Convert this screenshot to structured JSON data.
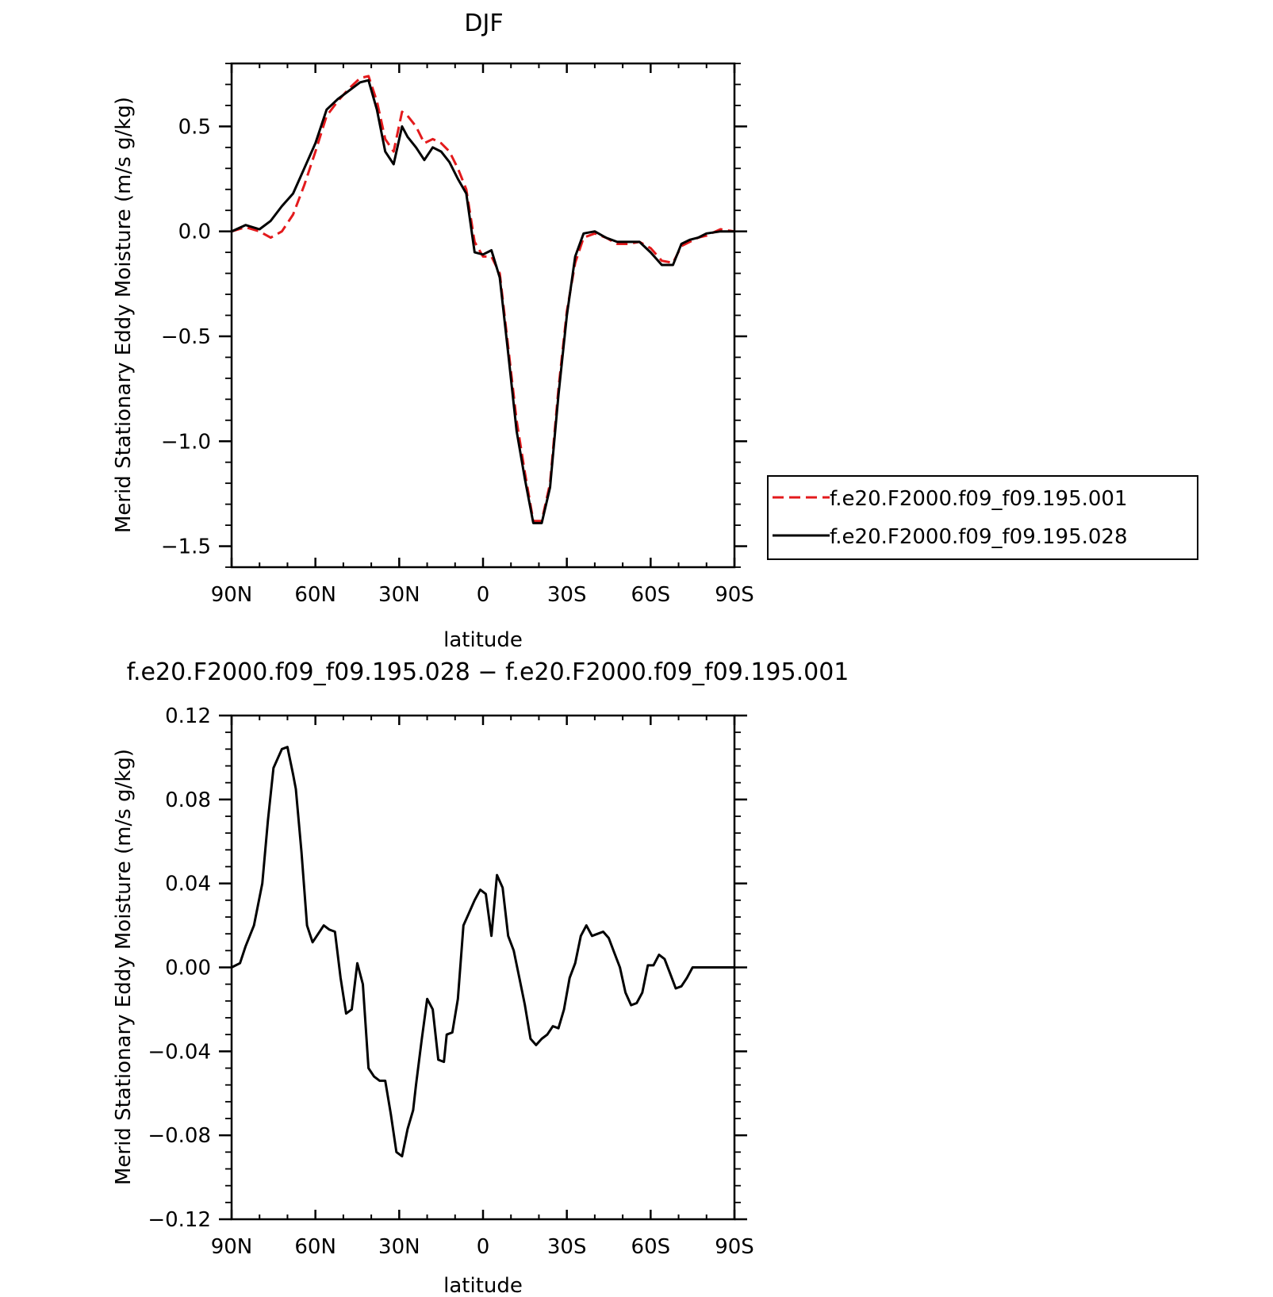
{
  "chart_data": [
    {
      "type": "line",
      "title": "DJF",
      "xlabel": "latitude",
      "ylabel": "Merid Stationary Eddy Moisture (m/s g/kg)",
      "xlim": [
        90,
        -90
      ],
      "ylim": [
        -1.6,
        0.8
      ],
      "xticks": [
        90,
        60,
        30,
        0,
        -30,
        -60,
        -90
      ],
      "xtick_labels": [
        "90N",
        "60N",
        "30N",
        "0",
        "30S",
        "60S",
        "90S"
      ],
      "yticks": [
        0.5,
        0.0,
        -0.5,
        -1.0,
        -1.5
      ],
      "ytick_labels": [
        "0.5",
        "0.0",
        "−0.5",
        "−1.0",
        "−1.5"
      ],
      "legend_position": "right",
      "series": [
        {
          "name": "f.e20.F2000.f09_f09.195.001",
          "color": "#e31a1c",
          "dash": "dashed",
          "x": [
            90,
            85,
            80,
            76,
            72,
            68,
            64,
            60,
            56,
            52,
            48,
            44,
            41,
            38,
            35,
            32,
            29,
            27,
            24,
            21,
            18,
            15,
            12,
            9,
            6,
            3,
            0,
            -3,
            -6,
            -9,
            -12,
            -15,
            -18,
            -21,
            -24,
            -27,
            -30,
            -33,
            -36,
            -40,
            -44,
            -48,
            -52,
            -56,
            -60,
            -64,
            -68,
            -71,
            -74,
            -77,
            -80,
            -85,
            -90
          ],
          "y": [
            0.0,
            0.02,
            0.0,
            -0.03,
            0.0,
            0.08,
            0.22,
            0.38,
            0.55,
            0.62,
            0.68,
            0.73,
            0.74,
            0.62,
            0.44,
            0.38,
            0.57,
            0.55,
            0.5,
            0.42,
            0.44,
            0.42,
            0.38,
            0.3,
            0.2,
            -0.05,
            -0.12,
            -0.12,
            -0.2,
            -0.55,
            -0.9,
            -1.15,
            -1.38,
            -1.38,
            -1.2,
            -0.75,
            -0.38,
            -0.15,
            -0.03,
            -0.01,
            -0.03,
            -0.06,
            -0.06,
            -0.05,
            -0.08,
            -0.14,
            -0.15,
            -0.07,
            -0.05,
            -0.03,
            -0.02,
            0.01,
            0.0
          ]
        },
        {
          "name": "f.e20.F2000.f09_f09.195.028",
          "color": "#000000",
          "dash": "solid",
          "x": [
            90,
            85,
            80,
            76,
            72,
            68,
            64,
            60,
            56,
            52,
            48,
            44,
            41,
            38,
            35,
            32,
            29,
            27,
            24,
            21,
            18,
            15,
            12,
            9,
            6,
            3,
            0,
            -3,
            -6,
            -9,
            -12,
            -15,
            -18,
            -21,
            -24,
            -27,
            -30,
            -33,
            -36,
            -40,
            -44,
            -48,
            -52,
            -56,
            -60,
            -64,
            -68,
            -71,
            -74,
            -77,
            -80,
            -85,
            -90
          ],
          "y": [
            0.0,
            0.03,
            0.01,
            0.05,
            0.12,
            0.18,
            0.3,
            0.42,
            0.58,
            0.63,
            0.67,
            0.71,
            0.72,
            0.58,
            0.38,
            0.32,
            0.5,
            0.45,
            0.4,
            0.34,
            0.4,
            0.38,
            0.33,
            0.25,
            0.18,
            -0.1,
            -0.11,
            -0.09,
            -0.22,
            -0.58,
            -0.95,
            -1.18,
            -1.39,
            -1.39,
            -1.22,
            -0.78,
            -0.4,
            -0.12,
            -0.01,
            0.0,
            -0.03,
            -0.05,
            -0.05,
            -0.05,
            -0.1,
            -0.16,
            -0.16,
            -0.06,
            -0.04,
            -0.03,
            -0.01,
            0.0,
            0.0
          ]
        }
      ]
    },
    {
      "type": "line",
      "title": "f.e20.F2000.f09_f09.195.028 − f.e20.F2000.f09_f09.195.001",
      "xlabel": "latitude",
      "ylabel": "Merid Stationary Eddy Moisture (m/s g/kg)",
      "xlim": [
        90,
        -90
      ],
      "ylim": [
        -0.12,
        0.12
      ],
      "xticks": [
        90,
        60,
        30,
        0,
        -30,
        -60,
        -90
      ],
      "xtick_labels": [
        "90N",
        "60N",
        "30N",
        "0",
        "30S",
        "60S",
        "90S"
      ],
      "yticks": [
        0.12,
        0.08,
        0.04,
        0.0,
        -0.04,
        -0.08,
        -0.12
      ],
      "ytick_labels": [
        "0.12",
        "0.08",
        "0.04",
        "0.00",
        "−0.04",
        "−0.08",
        "−0.12"
      ],
      "series": [
        {
          "color": "#000000",
          "x": [
            90,
            87,
            85,
            82,
            79,
            77,
            75,
            72,
            70,
            68,
            67,
            65,
            63,
            61,
            59,
            57,
            55,
            53,
            51,
            49,
            47,
            45,
            43,
            41,
            39,
            37,
            35,
            33,
            31,
            29,
            27,
            25,
            24,
            22,
            20,
            18,
            16,
            14,
            13,
            11,
            9,
            7,
            5,
            3,
            1,
            -1,
            -3,
            -5,
            -7,
            -9,
            -11,
            -13,
            -15,
            -17,
            -19,
            -21,
            -23,
            -25,
            -27,
            -29,
            -31,
            -33,
            -35,
            -37,
            -39,
            -41,
            -43,
            -45,
            -47,
            -49,
            -51,
            -53,
            -55,
            -57,
            -59,
            -61,
            -63,
            -65,
            -67,
            -69,
            -71,
            -73,
            -75,
            -77,
            -79,
            -81,
            -83,
            -85,
            -87,
            -90
          ],
          "y": [
            0.0,
            0.002,
            0.01,
            0.02,
            0.04,
            0.07,
            0.095,
            0.104,
            0.105,
            0.092,
            0.085,
            0.055,
            0.02,
            0.012,
            0.016,
            0.02,
            0.018,
            0.017,
            -0.005,
            -0.022,
            -0.02,
            0.002,
            -0.008,
            -0.048,
            -0.052,
            -0.054,
            -0.054,
            -0.07,
            -0.088,
            -0.09,
            -0.077,
            -0.068,
            -0.056,
            -0.035,
            -0.015,
            -0.02,
            -0.044,
            -0.045,
            -0.032,
            -0.031,
            -0.015,
            0.02,
            0.026,
            0.032,
            0.037,
            0.035,
            0.015,
            0.044,
            0.038,
            0.015,
            0.008,
            -0.005,
            -0.018,
            -0.034,
            -0.037,
            -0.034,
            -0.032,
            -0.028,
            -0.029,
            -0.02,
            -0.005,
            0.002,
            0.015,
            0.02,
            0.015,
            0.016,
            0.017,
            0.014,
            0.007,
            0.0,
            -0.012,
            -0.018,
            -0.017,
            -0.012,
            0.001,
            0.001,
            0.006,
            0.004,
            -0.003,
            -0.01,
            -0.009,
            -0.005,
            0.0,
            0.0,
            0.0,
            0.0,
            0.0,
            0.0,
            0.0,
            0.0
          ]
        }
      ]
    }
  ]
}
